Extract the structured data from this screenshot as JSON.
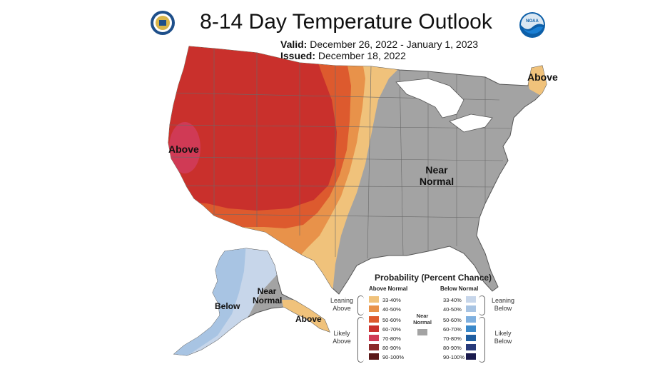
{
  "title": "8-14 Day Temperature Outlook",
  "valid": {
    "label": "Valid:",
    "value": "December 26, 2022 - January 1, 2023"
  },
  "issued": {
    "label": "Issued:",
    "value": "December 18, 2022"
  },
  "logos": {
    "left": "doc-seal-icon",
    "right": "noaa-logo-icon"
  },
  "map_labels": {
    "west_above": "Above",
    "northeast_above": "Above",
    "central_near_normal_1": "Near",
    "central_near_normal_2": "Normal",
    "alaska_below": "Below",
    "alaska_near_normal_1": "Near",
    "alaska_near_normal_2": "Normal",
    "alaska_above": "Above"
  },
  "colors": {
    "near_normal": "#a3a3a3",
    "above_33_40": "#f0c27b",
    "above_40_50": "#e8924a",
    "above_50_60": "#dd5a2e",
    "above_60_70": "#c9302c",
    "above_70_80": "#d03a55",
    "above_80_90": "#8b2a2a",
    "above_90_100": "#5a1818",
    "below_33_40": "#c7d6ea",
    "below_40_50": "#a8c4e3",
    "below_50_60": "#7fb0df",
    "below_60_70": "#3a88c9",
    "below_70_80": "#1f5ea0",
    "below_80_90": "#283a7a",
    "below_90_100": "#1b1b4d"
  },
  "legend": {
    "title": "Probability (Percent Chance)",
    "above_header": "Above Normal",
    "below_header": "Below Normal",
    "near_label_1": "Near",
    "near_label_2": "Normal",
    "leaning_above_1": "Leaning",
    "leaning_above_2": "Above",
    "likely_above_1": "Likely",
    "likely_above_2": "Above",
    "leaning_below_1": "Leaning",
    "leaning_below_2": "Below",
    "likely_below_1": "Likely",
    "likely_below_2": "Below",
    "above_ranges": [
      "33-40%",
      "40-50%",
      "50-60%",
      "60-70%",
      "70-80%",
      "80-90%",
      "90-100%"
    ],
    "below_ranges": [
      "33-40%",
      "40-50%",
      "50-60%",
      "60-70%",
      "70-80%",
      "80-90%",
      "90-100%"
    ]
  }
}
